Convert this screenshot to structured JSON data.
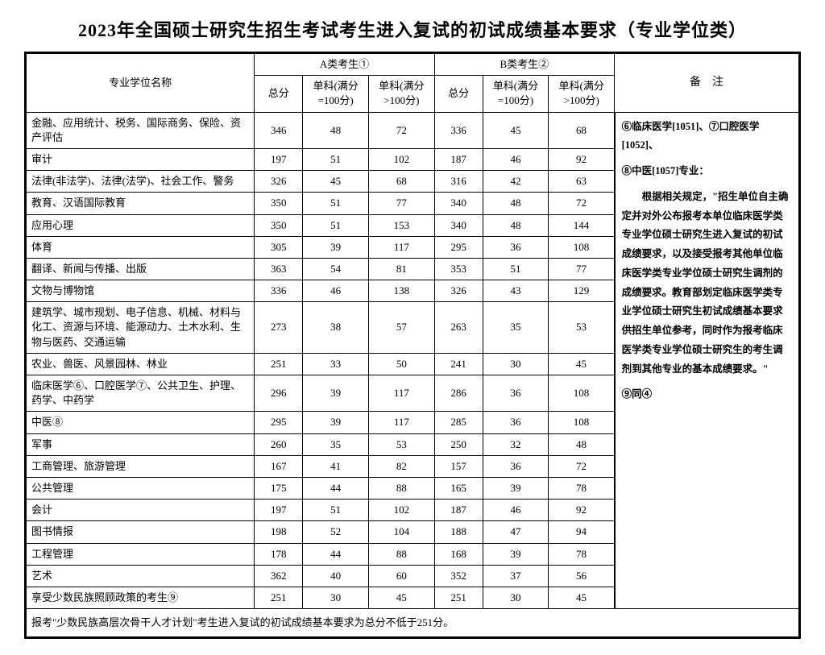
{
  "title": "2023年全国硕士研究生招生考试考生进入复试的初试成绩基本要求（专业学位类）",
  "headers": {
    "name": "专业学位名称",
    "groupA": "A类考生①",
    "groupB": "B类考生②",
    "total": "总分",
    "sub100": "单科(满分=100分)",
    "subOver100": "单科(满分>100分)",
    "notes": "备　注"
  },
  "rows": [
    {
      "name": "金融、应用统计、税务、国际商务、保险、资产评估",
      "a": [
        346,
        48,
        72
      ],
      "b": [
        336,
        45,
        68
      ]
    },
    {
      "name": "审计",
      "a": [
        197,
        51,
        102
      ],
      "b": [
        187,
        46,
        92
      ]
    },
    {
      "name": "法律(非法学)、法律(法学)、社会工作、警务",
      "a": [
        326,
        45,
        68
      ],
      "b": [
        316,
        42,
        63
      ]
    },
    {
      "name": "教育、汉语国际教育",
      "a": [
        350,
        51,
        77
      ],
      "b": [
        340,
        48,
        72
      ]
    },
    {
      "name": "应用心理",
      "a": [
        350,
        51,
        153
      ],
      "b": [
        340,
        48,
        144
      ]
    },
    {
      "name": "体育",
      "a": [
        305,
        39,
        117
      ],
      "b": [
        295,
        36,
        108
      ]
    },
    {
      "name": "翻译、新闻与传播、出版",
      "a": [
        363,
        54,
        81
      ],
      "b": [
        353,
        51,
        77
      ]
    },
    {
      "name": "文物与博物馆",
      "a": [
        336,
        46,
        138
      ],
      "b": [
        326,
        43,
        129
      ]
    },
    {
      "name": "建筑学、城市规划、电子信息、机械、材料与化工、资源与环境、能源动力、土木水利、生物与医药、交通运输",
      "a": [
        273,
        38,
        57
      ],
      "b": [
        263,
        35,
        53
      ]
    },
    {
      "name": "农业、兽医、风景园林、林业",
      "a": [
        251,
        33,
        50
      ],
      "b": [
        241,
        30,
        45
      ]
    },
    {
      "name": "临床医学⑥、口腔医学⑦、公共卫生、护理、药学、中药学",
      "a": [
        296,
        39,
        117
      ],
      "b": [
        286,
        36,
        108
      ]
    },
    {
      "name": "中医⑧",
      "a": [
        295,
        39,
        117
      ],
      "b": [
        285,
        36,
        108
      ]
    },
    {
      "name": "军事",
      "a": [
        260,
        35,
        53
      ],
      "b": [
        250,
        32,
        48
      ]
    },
    {
      "name": "工商管理、旅游管理",
      "a": [
        167,
        41,
        82
      ],
      "b": [
        157,
        36,
        72
      ]
    },
    {
      "name": "公共管理",
      "a": [
        175,
        44,
        88
      ],
      "b": [
        165,
        39,
        78
      ]
    },
    {
      "name": "会计",
      "a": [
        197,
        51,
        102
      ],
      "b": [
        187,
        46,
        92
      ]
    },
    {
      "name": "图书情报",
      "a": [
        198,
        52,
        104
      ],
      "b": [
        188,
        47,
        94
      ]
    },
    {
      "name": "工程管理",
      "a": [
        178,
        44,
        88
      ],
      "b": [
        168,
        39,
        78
      ]
    },
    {
      "name": "艺术",
      "a": [
        362,
        40,
        60
      ],
      "b": [
        352,
        37,
        56
      ]
    },
    {
      "name": "享受少数民族照顾政策的考生⑨",
      "a": [
        251,
        30,
        45
      ],
      "b": [
        251,
        30,
        45
      ]
    }
  ],
  "footer": "报考\"少数民族高层次骨干人才计划\"考生进入复试的初试成绩基本要求为总分不低于251分。",
  "notes": {
    "line1": "⑥临床医学[1051]、⑦口腔医学[1052]、",
    "line2": "⑧中医[1057]专业：",
    "para": "根据相关规定，\"招生单位自主确定并对外公布报考本单位临床医学类专业学位硕士研究生进入复试的初试成绩要求，以及接受报考其他单位临床医学类专业学位硕士研究生调剂的成绩要求。教育部划定临床医学类专业学位硕士研究生初试成绩基本要求供招生单位参考，同时作为报考临床医学类专业学位硕士研究生的考生调剂到其他专业的基本成绩要求。\"",
    "line3": "⑨同④"
  }
}
